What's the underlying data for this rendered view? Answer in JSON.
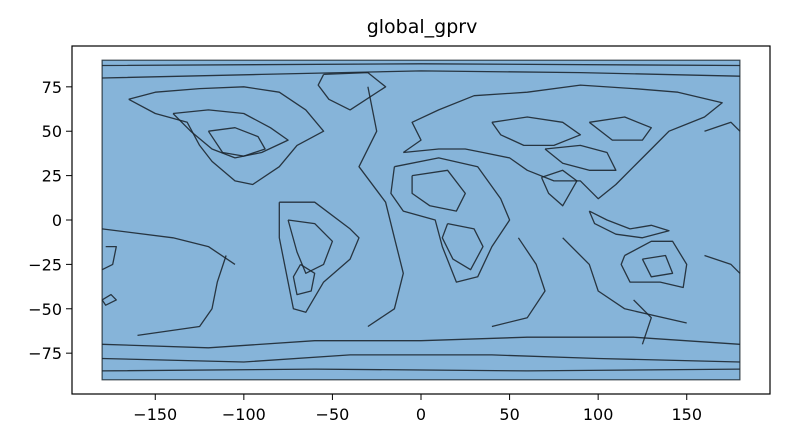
{
  "chart_data": {
    "type": "map",
    "title": "global_gprv",
    "xlim": [
      -197,
      197
    ],
    "ylim": [
      -98,
      98
    ],
    "data_extent": {
      "lon": [
        -180,
        180
      ],
      "lat": [
        -90,
        90
      ]
    },
    "x_ticks": [
      -150,
      -100,
      -50,
      0,
      50,
      100,
      150
    ],
    "y_ticks": [
      75,
      50,
      25,
      0,
      -25,
      -50,
      -75
    ],
    "x_tick_labels": [
      "−150",
      "−100",
      "−50",
      "0",
      "50",
      "100",
      "150"
    ],
    "y_tick_labels": [
      "75",
      "50",
      "25",
      "0",
      "−25",
      "−50",
      "−75"
    ],
    "grid": false,
    "fill_color": "#86b4d9",
    "edge_color": "#1a232b"
  }
}
